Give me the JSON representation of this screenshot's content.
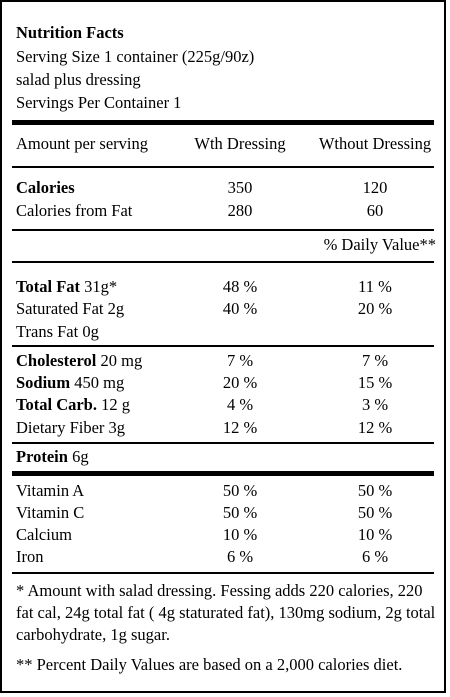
{
  "header": {
    "title": "Nutrition Facts",
    "serving_size": "Serving Size 1 container (225g/90z)",
    "serving_desc": "salad plus dressing",
    "servings_per_container": "Servings Per Container 1"
  },
  "columns": {
    "amount_label": "Amount per serving",
    "with": "Wth Dressing",
    "without": "Wthout Dressing"
  },
  "calories": {
    "label": "Calories",
    "with": "350",
    "without": "120",
    "from_fat_label": "Calories from Fat",
    "from_fat_with": "280",
    "from_fat_without": "60"
  },
  "daily_value_header": "% Daily Value**",
  "fat": {
    "total_label": "Total Fat",
    "total_amount": " 31g*",
    "total_with": "48 %",
    "total_without": "11 %",
    "sat_label": "Saturated Fat 2g",
    "sat_with": "40 %",
    "sat_without": "20 %",
    "trans_label": "Trans Fat 0g"
  },
  "cholesterol": {
    "label": "Cholesterol",
    "amount": " 20 mg",
    "with": "7 %",
    "without": "7 %"
  },
  "sodium": {
    "label": "Sodium",
    "amount": " 450 mg",
    "with": "20 %",
    "without": "15 %"
  },
  "carb": {
    "label": "Total Carb.",
    "amount": " 12 g",
    "with": "4 %",
    "without": "3 %"
  },
  "fiber": {
    "label": "Dietary Fiber 3g",
    "with": "12 %",
    "without": "12 %"
  },
  "protein": {
    "label": "Protein",
    "amount": " 6g"
  },
  "vitamins": [
    {
      "label": "Vitamin A",
      "with": "50 %",
      "without": "50 %"
    },
    {
      "label": "Vitamin C",
      "with": "50 %",
      "without": "50 %"
    },
    {
      "label": "Calcium",
      "with": "10 %",
      "without": "10 %"
    },
    {
      "label": "Iron",
      "with": "6 %",
      "without": "6 %"
    }
  ],
  "footnotes": {
    "star": "*  Amount with salad dressing. Fessing adds 220 calories, 220 fat cal, 24g total fat ( 4g staturated fat), 130mg sodium, 2g total carbohydrate, 1g sugar.",
    "double_star": "** Percent Daily Values are based on a 2,000 calories diet."
  }
}
